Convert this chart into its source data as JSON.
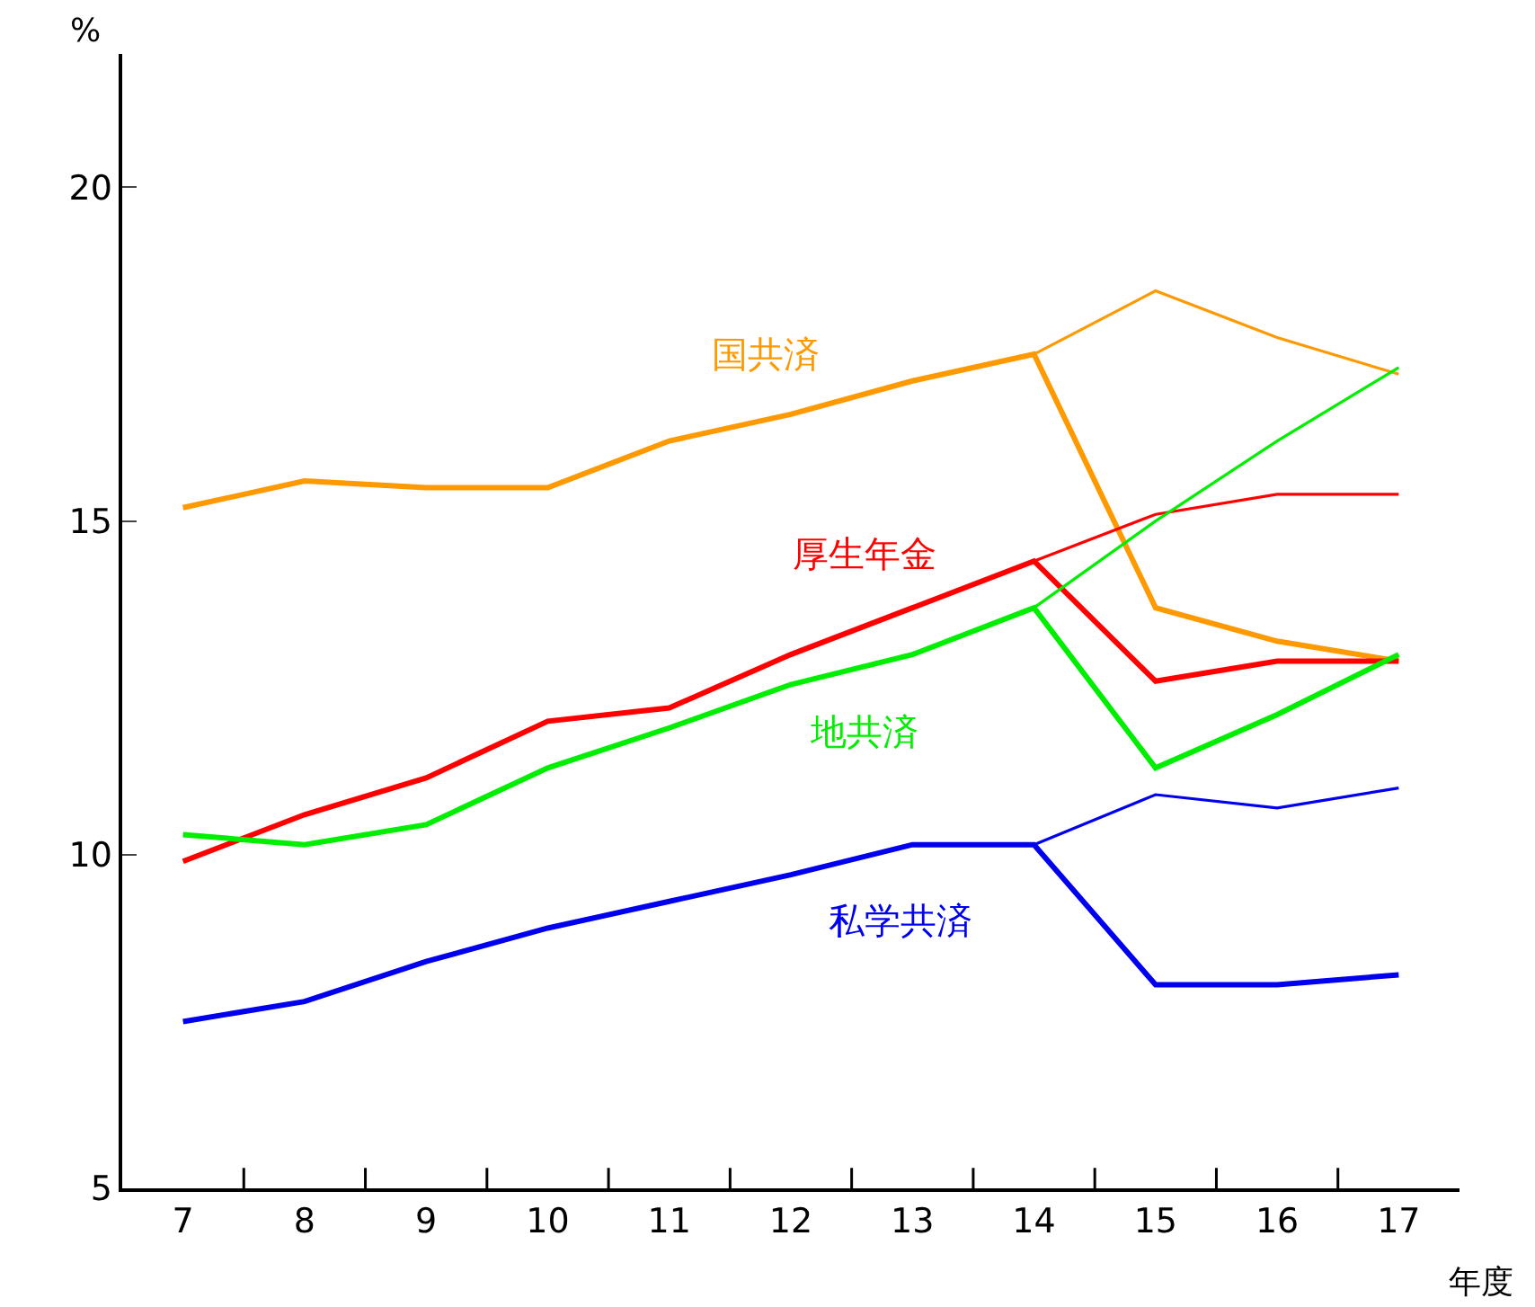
{
  "chart_data": {
    "type": "line",
    "ylabel": "%",
    "xlabel": "年度",
    "categories": [
      "7",
      "8",
      "9",
      "10",
      "11",
      "12",
      "13",
      "14",
      "15",
      "16",
      "17"
    ],
    "ylim": [
      5,
      22
    ],
    "yticks": [
      5,
      10,
      15,
      20
    ],
    "legend": false,
    "marker": "none",
    "line_style": "solid",
    "series": [
      {
        "name": "国共済",
        "color": "#ff9900",
        "values": [
          15.2,
          15.6,
          15.5,
          15.5,
          16.2,
          16.6,
          17.1,
          17.5,
          13.7,
          13.2,
          12.9
        ]
      },
      {
        "name": "厚生年金",
        "color": "#ff0000",
        "values": [
          9.9,
          10.6,
          11.15,
          12.0,
          12.2,
          13.0,
          13.7,
          14.4,
          12.6,
          12.9,
          12.9
        ]
      },
      {
        "name": "地共済",
        "color": "#00ee00",
        "values": [
          10.3,
          10.15,
          10.45,
          11.3,
          11.9,
          12.55,
          13.0,
          13.7,
          11.3,
          12.1,
          13.0
        ]
      },
      {
        "name": "私学共済",
        "color": "#0000ee",
        "values": [
          7.5,
          7.8,
          8.4,
          8.9,
          9.3,
          9.7,
          10.15,
          10.15,
          8.05,
          8.05,
          8.2
        ]
      },
      {
        "color": "#ff9900",
        "values": [
          null,
          null,
          null,
          null,
          null,
          null,
          null,
          17.5,
          18.45,
          17.75,
          17.2
        ]
      },
      {
        "color": "#ff0000",
        "values": [
          null,
          null,
          null,
          null,
          null,
          null,
          null,
          14.4,
          15.1,
          15.4,
          15.4
        ]
      },
      {
        "color": "#00ee00",
        "values": [
          null,
          null,
          null,
          null,
          null,
          null,
          null,
          13.7,
          15.0,
          16.2,
          17.3
        ]
      },
      {
        "color": "#0000ee",
        "values": [
          null,
          null,
          null,
          null,
          null,
          null,
          null,
          10.15,
          10.9,
          10.7,
          11.0
        ]
      }
    ]
  }
}
